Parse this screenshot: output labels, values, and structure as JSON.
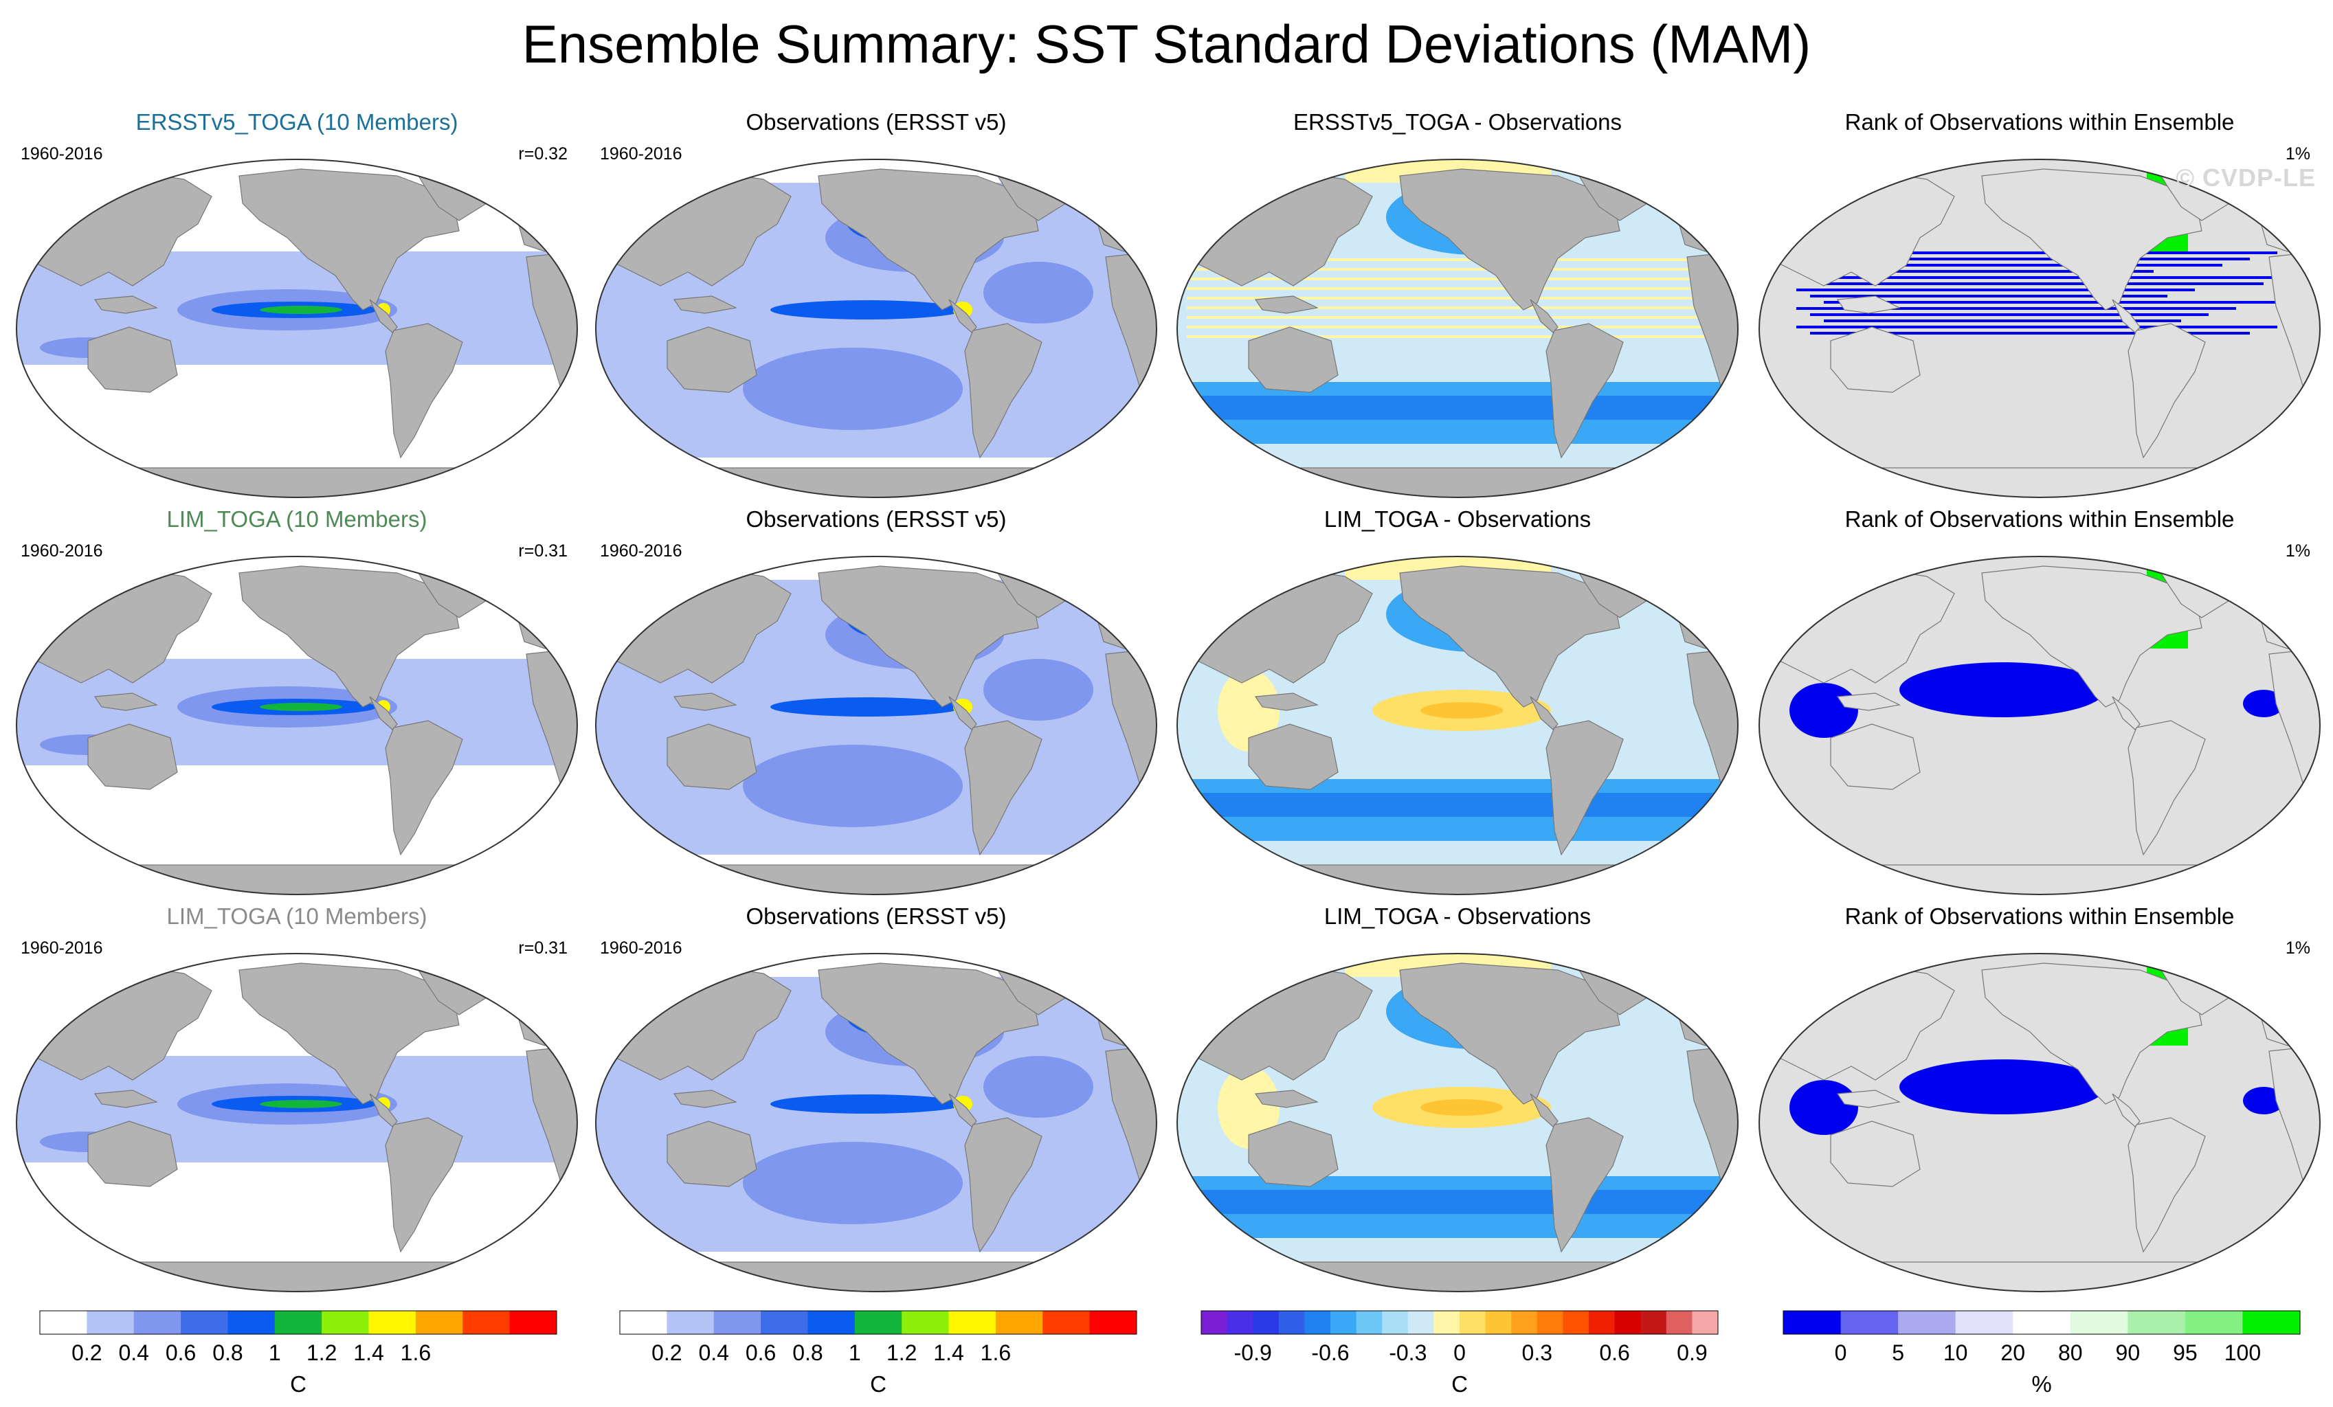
{
  "title": "Ensemble Summary: SST Standard Deviations (MAM)",
  "watermark": "© CVDP-LE",
  "colors": {
    "land": "#b3b3b3",
    "land_light": "#e0e0e0",
    "coast": "#777777",
    "map_outline": "#333333"
  },
  "rows": [
    {
      "ensemble": {
        "title": "ERSSTv5_TOGA (10 Members)",
        "title_color": "#1b6f98",
        "period": "1960-2016",
        "metric": "r=0.32"
      },
      "obs": {
        "title": "Observations (ERSST v5)",
        "period": "1960-2016"
      },
      "diff": {
        "title": "ERSSTv5_TOGA - Observations"
      },
      "rank": {
        "title": "Rank of Observations within Ensemble",
        "metric": "1%"
      }
    },
    {
      "ensemble": {
        "title": "LIM_TOGA (10 Members)",
        "title_color": "#4e8a55",
        "period": "1960-2016",
        "metric": "r=0.31"
      },
      "obs": {
        "title": "Observations (ERSST v5)",
        "period": "1960-2016"
      },
      "diff": {
        "title": "LIM_TOGA - Observations"
      },
      "rank": {
        "title": "Rank of Observations within Ensemble",
        "metric": "1%"
      }
    },
    {
      "ensemble": {
        "title": "LIM_TOGA (10 Members)",
        "title_color": "#8a8a8a",
        "period": "1960-2016",
        "metric": "r=0.31"
      },
      "obs": {
        "title": "Observations (ERSST v5)",
        "period": "1960-2016"
      },
      "diff": {
        "title": "LIM_TOGA - Observations"
      },
      "rank": {
        "title": "Rank of Observations within Ensemble",
        "metric": "1%"
      }
    }
  ],
  "colorbars": [
    {
      "name": "std-colorbar-1",
      "unit": "C",
      "colors": [
        "#ffffff",
        "#b3c3f5",
        "#7f97ee",
        "#3d6de8",
        "#0a5cf0",
        "#13b53a",
        "#8ef00a",
        "#fff700",
        "#ffa500",
        "#ff3c00",
        "#ff0000"
      ],
      "labels": [
        "0.2",
        "0.4",
        "0.6",
        "0.8",
        "1",
        "1.2",
        "1.4",
        "1.6"
      ]
    },
    {
      "name": "std-colorbar-2",
      "unit": "C",
      "colors": [
        "#ffffff",
        "#b3c3f5",
        "#7f97ee",
        "#3d6de8",
        "#0a5cf0",
        "#13b53a",
        "#8ef00a",
        "#fff700",
        "#ffa500",
        "#ff3c00",
        "#ff0000"
      ],
      "labels": [
        "0.2",
        "0.4",
        "0.6",
        "0.8",
        "1",
        "1.2",
        "1.4",
        "1.6"
      ]
    },
    {
      "name": "diff-colorbar",
      "unit": "C",
      "colors": [
        "#7a1fd6",
        "#4b2ee8",
        "#2a3ae6",
        "#2f5fe8",
        "#1f82f0",
        "#3aa8f5",
        "#6cc7f7",
        "#a9def6",
        "#cfeaf6",
        "#fff6a8",
        "#ffe066",
        "#ffc433",
        "#ffa11a",
        "#ff7c0a",
        "#ff5200",
        "#f01f00",
        "#d60000",
        "#c21818",
        "#e06060",
        "#f4a8a8"
      ],
      "labels": [
        "-0.9",
        "-0.6",
        "-0.3",
        "0",
        "0.3",
        "0.6",
        "0.9"
      ],
      "label_edges": [
        2,
        5,
        8,
        10,
        13,
        16,
        19
      ]
    },
    {
      "name": "rank-colorbar",
      "unit": "%",
      "colors": [
        "#0000f0",
        "#6464f0",
        "#aaaaf0",
        "#e1e1fb",
        "#ffffff",
        "#e1fbe1",
        "#aaf0aa",
        "#82f082",
        "#00f000"
      ],
      "labels": [
        "0",
        "5",
        "10",
        "20",
        "80",
        "90",
        "95",
        "100"
      ],
      "label_edges": [
        1,
        2,
        3,
        4,
        5,
        6,
        7,
        8
      ]
    }
  ]
}
